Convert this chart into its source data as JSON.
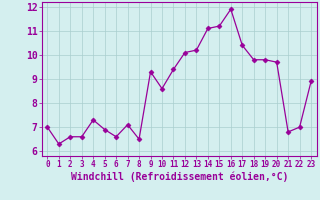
{
  "x": [
    0,
    1,
    2,
    3,
    4,
    5,
    6,
    7,
    8,
    9,
    10,
    11,
    12,
    13,
    14,
    15,
    16,
    17,
    18,
    19,
    20,
    21,
    22,
    23
  ],
  "y": [
    7.0,
    6.3,
    6.6,
    6.6,
    7.3,
    6.9,
    6.6,
    7.1,
    6.5,
    9.3,
    8.6,
    9.4,
    10.1,
    10.2,
    11.1,
    11.2,
    11.9,
    10.4,
    9.8,
    9.8,
    9.7,
    6.8,
    7.0,
    8.9
  ],
  "xlim": [
    -0.5,
    23.5
  ],
  "ylim": [
    5.8,
    12.2
  ],
  "yticks": [
    6,
    7,
    8,
    9,
    10,
    11,
    12
  ],
  "xticks": [
    0,
    1,
    2,
    3,
    4,
    5,
    6,
    7,
    8,
    9,
    10,
    11,
    12,
    13,
    14,
    15,
    16,
    17,
    18,
    19,
    20,
    21,
    22,
    23
  ],
  "xlabel": "Windchill (Refroidissement éolien,°C)",
  "line_color": "#990099",
  "marker": "D",
  "marker_size": 2.5,
  "bg_color": "#d4efef",
  "grid_color": "#aacece",
  "xlabel_fontsize": 7,
  "tick_fontsize": 7,
  "xtick_fontsize": 5.5,
  "tick_color": "#990099",
  "spine_color": "#990099"
}
